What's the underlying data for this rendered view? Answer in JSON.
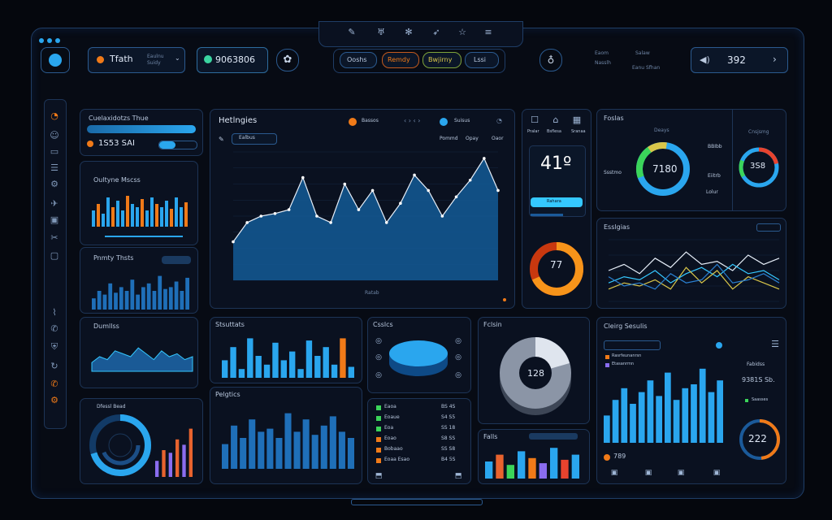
{
  "colors": {
    "bg": "#05070d",
    "panel": "#0a1120",
    "border": "#1d3456",
    "blue": "#2aa6ee",
    "cyan": "#35c8ff",
    "orange": "#f07a18",
    "green": "#3bd45a",
    "red": "#e8432e",
    "purple": "#8a6df0",
    "yellow": "#d9c64a"
  },
  "topbar": {
    "brand_label": "Tfath",
    "brand_sub": "Eaulnu\nSuidy",
    "account_code": "9063806",
    "nav": [
      "Ooshs",
      "Remdy",
      "Bwjirny",
      "Lssi"
    ],
    "notif_lines": [
      "Eaom",
      "Nasslh"
    ],
    "user_lines": [
      "Salaw",
      "Eanu Sfhan"
    ],
    "volume_value": "392",
    "center_icons": [
      "pen-icon",
      "mic-icon",
      "bug-icon",
      "rocket-icon",
      "star-icon",
      "menu-icon"
    ]
  },
  "sidebar": {
    "icons": [
      "clock-icon",
      "chat-icon",
      "folder-icon",
      "list-icon",
      "car-icon",
      "plane-icon",
      "image-icon",
      "scissors-icon",
      "note-icon",
      "signal-icon",
      "phone-icon",
      "shield-icon",
      "refresh-icon",
      "call-icon",
      "settings-icon"
    ]
  },
  "card_balance": {
    "title": "Cuelaxidotzs Thue",
    "value": "1S53 SAI"
  },
  "card_main": {
    "title": "Hetlngies",
    "legend_a": "Bassos",
    "legend_b": "Suisus",
    "filter": "Ealbus",
    "tabs": [
      "Pommd",
      "Opay",
      "Oaor"
    ],
    "footer": "Ratab"
  },
  "card_qm": {
    "title": "Oultyne Mscss"
  },
  "card_pt": {
    "title": "Pnmty Thsts"
  },
  "card_dp": {
    "title": "Dumllss"
  },
  "card_stat": {
    "icons": [
      "bag-icon",
      "cart-icon",
      "grid-icon"
    ],
    "labels": [
      "Pralar",
      "Bsflesa",
      "Sranaa"
    ],
    "value": "41º",
    "button": "Rahara",
    "gauge": "77"
  },
  "card_donut": {
    "title": "Foslas",
    "center": "7180",
    "left": [
      "Ssstmo"
    ],
    "right": [
      "BBIbb",
      "Eiitrb",
      "Lolur"
    ],
    "right_title": "Deays",
    "right_title2": "Cnsjsmg",
    "small_center": "3S8"
  },
  "card_line": {
    "title": "Esslgias"
  },
  "card_bottom_bars": {
    "title": "Stsuttats"
  },
  "card_disk": {
    "title": "Csslcs"
  },
  "card_pie3d": {
    "title": "Fclsin",
    "center": "128"
  },
  "card_cs": {
    "title": "Cleirg Sesulis",
    "legend": [
      "Rasrfeunanrsn",
      "Etasanrmn"
    ],
    "right_label": "Fabidss",
    "right_value": "9381S Sb.",
    "right_sub": "Saasses",
    "bottom_left": "789",
    "gauge": "222"
  },
  "card_ring": {
    "title": "Dfessl Bead"
  },
  "card_pp": {
    "title": "Pelgtics"
  },
  "card_list": {
    "rows": [
      [
        "Eaoa",
        "BS 4S"
      ],
      [
        "Eoaue",
        "S4 S5"
      ],
      [
        "Eoa",
        "SS 18"
      ],
      [
        "Eoao",
        "S8 SS"
      ],
      [
        "Bobaao",
        "SS S8"
      ],
      [
        "Eoaa Esao",
        "B4 5S"
      ]
    ]
  },
  "card_fails": {
    "title": "Falls"
  }
}
